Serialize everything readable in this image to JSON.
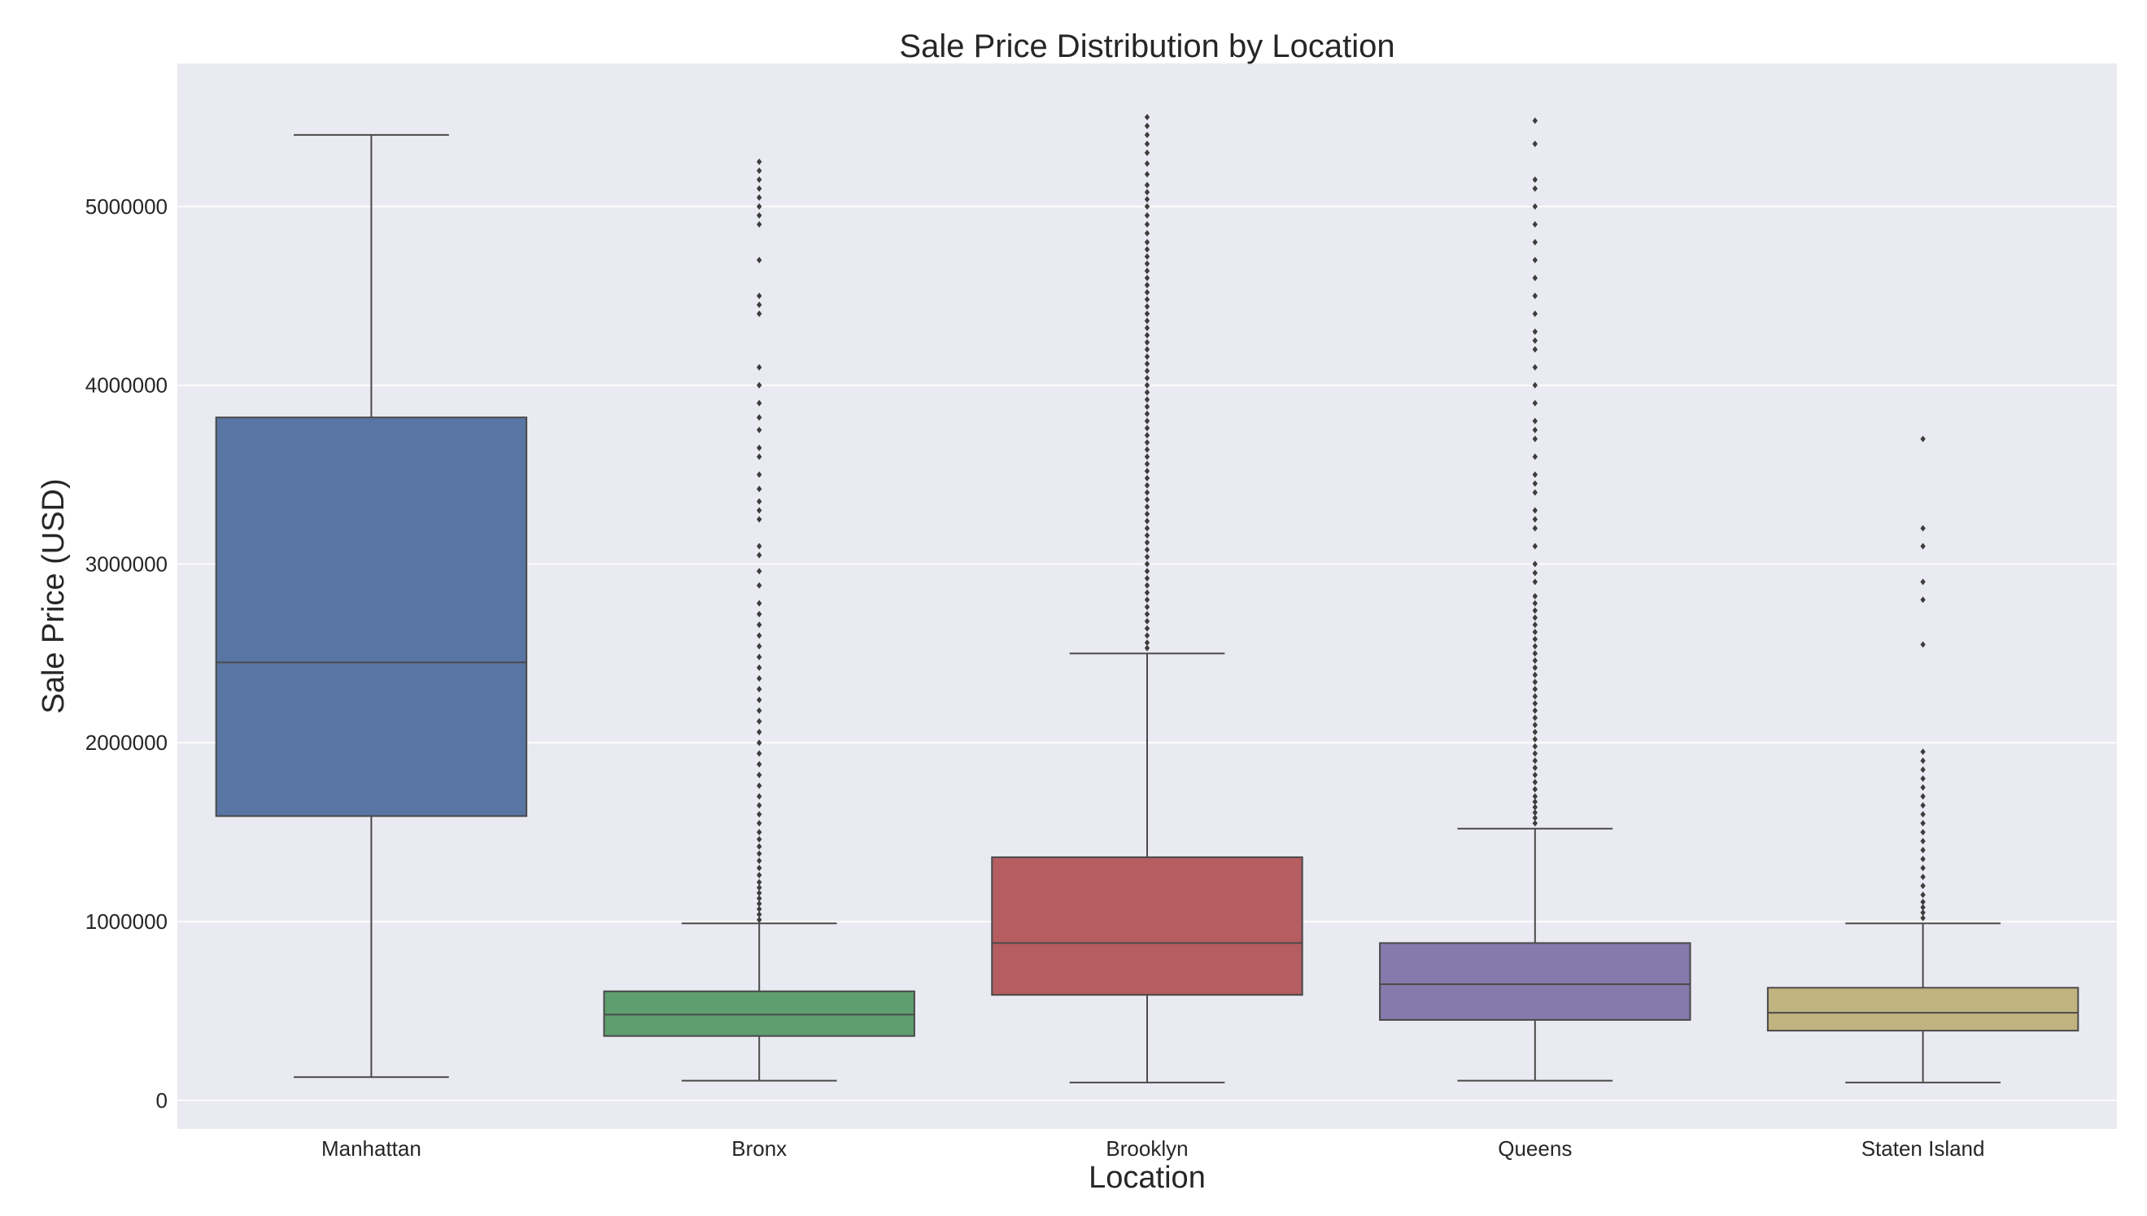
{
  "chart_data": {
    "type": "box",
    "title": "Sale Price Distribution by Location",
    "xlabel": "Location",
    "ylabel": "Sale Price (USD)",
    "ylim": [
      -160000,
      5800000
    ],
    "yticks": [
      0,
      1000000,
      2000000,
      3000000,
      4000000,
      5000000
    ],
    "ytick_labels": [
      "0",
      "1000000",
      "2000000",
      "3000000",
      "4000000",
      "5000000"
    ],
    "grid": true,
    "categories": [
      "Manhattan",
      "Bronx",
      "Brooklyn",
      "Queens",
      "Staten Island"
    ],
    "colors": [
      "#5975a4",
      "#5f9e6e",
      "#b55d60",
      "#857aab",
      "#c1b37f"
    ],
    "boxes": [
      {
        "name": "Manhattan",
        "whisker_low": 130000,
        "q1": 1590000,
        "median": 2450000,
        "q3": 3820000,
        "whisker_high": 5400000,
        "outliers": []
      },
      {
        "name": "Bronx",
        "whisker_low": 110000,
        "q1": 360000,
        "median": 480000,
        "q3": 610000,
        "whisker_high": 990000,
        "outliers": [
          1010000,
          1040000,
          1070000,
          1100000,
          1130000,
          1160000,
          1190000,
          1220000,
          1260000,
          1300000,
          1340000,
          1380000,
          1420000,
          1460000,
          1500000,
          1550000,
          1600000,
          1650000,
          1700000,
          1760000,
          1820000,
          1880000,
          1940000,
          2000000,
          2060000,
          2120000,
          2180000,
          2240000,
          2300000,
          2360000,
          2420000,
          2480000,
          2540000,
          2600000,
          2660000,
          2720000,
          2780000,
          2880000,
          2960000,
          3050000,
          3100000,
          3250000,
          3300000,
          3350000,
          3420000,
          3500000,
          3600000,
          3650000,
          3750000,
          3820000,
          3900000,
          4000000,
          4100000,
          4400000,
          4450000,
          4500000,
          4700000,
          4900000,
          4950000,
          5000000,
          5050000,
          5100000,
          5150000,
          5200000,
          5250000
        ]
      },
      {
        "name": "Brooklyn",
        "whisker_low": 100000,
        "q1": 590000,
        "median": 880000,
        "q3": 1360000,
        "whisker_high": 2500000,
        "outliers": [
          2530000,
          2560000,
          2600000,
          2640000,
          2680000,
          2720000,
          2760000,
          2800000,
          2840000,
          2880000,
          2920000,
          2960000,
          3000000,
          3040000,
          3080000,
          3120000,
          3160000,
          3200000,
          3240000,
          3280000,
          3320000,
          3360000,
          3400000,
          3440000,
          3480000,
          3520000,
          3560000,
          3600000,
          3640000,
          3680000,
          3720000,
          3760000,
          3800000,
          3840000,
          3880000,
          3920000,
          3960000,
          4000000,
          4040000,
          4080000,
          4120000,
          4160000,
          4200000,
          4240000,
          4280000,
          4320000,
          4360000,
          4400000,
          4440000,
          4480000,
          4520000,
          4560000,
          4600000,
          4640000,
          4680000,
          4720000,
          4760000,
          4800000,
          4850000,
          4900000,
          4950000,
          5000000,
          5040000,
          5080000,
          5120000,
          5180000,
          5240000,
          5300000,
          5350000,
          5400000,
          5450000,
          5500000
        ]
      },
      {
        "name": "Queens",
        "whisker_low": 110000,
        "q1": 450000,
        "median": 650000,
        "q3": 880000,
        "whisker_high": 1520000,
        "outliers": [
          1550000,
          1580000,
          1610000,
          1640000,
          1670000,
          1700000,
          1740000,
          1780000,
          1820000,
          1860000,
          1900000,
          1940000,
          1980000,
          2020000,
          2060000,
          2100000,
          2140000,
          2180000,
          2220000,
          2260000,
          2300000,
          2340000,
          2380000,
          2420000,
          2460000,
          2500000,
          2540000,
          2580000,
          2620000,
          2660000,
          2700000,
          2740000,
          2780000,
          2820000,
          2900000,
          2950000,
          3000000,
          3100000,
          3200000,
          3250000,
          3300000,
          3400000,
          3450000,
          3500000,
          3600000,
          3700000,
          3750000,
          3800000,
          3900000,
          4000000,
          4100000,
          4200000,
          4250000,
          4300000,
          4400000,
          4500000,
          4600000,
          4700000,
          4800000,
          4900000,
          5000000,
          5100000,
          5150000,
          5350000,
          5480000
        ]
      },
      {
        "name": "Staten Island",
        "whisker_low": 100000,
        "q1": 390000,
        "median": 490000,
        "q3": 630000,
        "whisker_high": 990000,
        "outliers": [
          1020000,
          1050000,
          1080000,
          1110000,
          1150000,
          1200000,
          1250000,
          1300000,
          1350000,
          1400000,
          1450000,
          1500000,
          1550000,
          1600000,
          1650000,
          1700000,
          1750000,
          1800000,
          1850000,
          1900000,
          1950000,
          2550000,
          2800000,
          2900000,
          3100000,
          3200000,
          3700000
        ]
      }
    ]
  }
}
